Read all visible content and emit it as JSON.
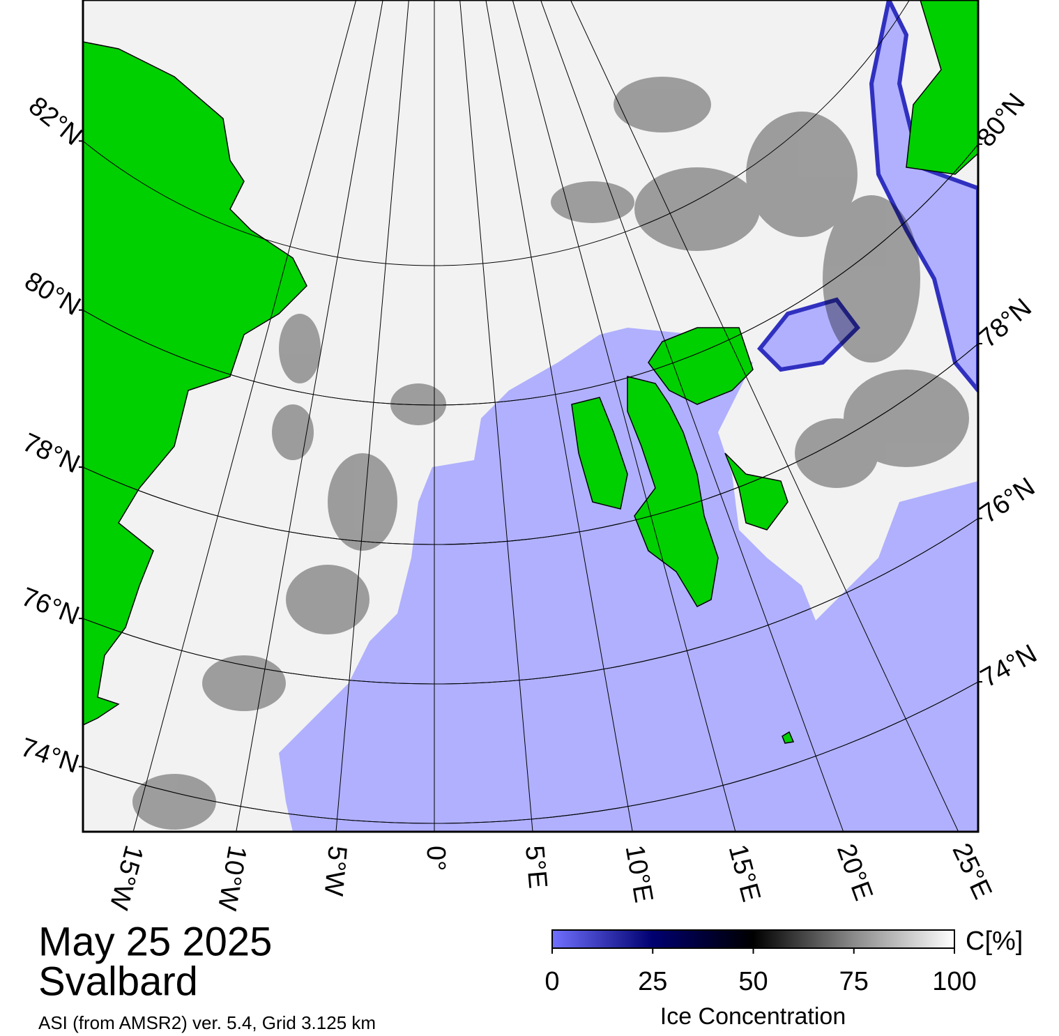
{
  "map": {
    "date": "May 25 2025",
    "region": "Svalbard",
    "source": "ASI (from AMSR2) ver. 5.4,  Grid 3.125 km",
    "parallels_left": [
      {
        "value": 82,
        "label": "82°N"
      },
      {
        "value": 80,
        "label": "80°N"
      },
      {
        "value": 78,
        "label": "78°N"
      },
      {
        "value": 76,
        "label": "76°N"
      },
      {
        "value": 74,
        "label": "74°N"
      }
    ],
    "parallels_right": [
      {
        "value": 80,
        "label": "80°N"
      },
      {
        "value": 78,
        "label": "78°N"
      },
      {
        "value": 76,
        "label": "76°N"
      },
      {
        "value": 74,
        "label": "74°N"
      }
    ],
    "meridians": [
      {
        "value": -15,
        "label": "15°W"
      },
      {
        "value": -10,
        "label": "10°W"
      },
      {
        "value": -5,
        "label": "5°W"
      },
      {
        "value": 0,
        "label": "0°"
      },
      {
        "value": 5,
        "label": "5°E"
      },
      {
        "value": 10,
        "label": "10°E"
      },
      {
        "value": 15,
        "label": "15°E"
      },
      {
        "value": 20,
        "label": "20°E"
      },
      {
        "value": 25,
        "label": "25°E"
      }
    ]
  },
  "colorbar": {
    "label": "Ice Concentration",
    "unit": "C[%]",
    "range": [
      0,
      100
    ],
    "ticks": [
      0,
      25,
      50,
      75,
      100
    ],
    "colors": [
      "#7070ff",
      "#000070",
      "#000000",
      "#8a8a8a",
      "#ffffff"
    ]
  }
}
